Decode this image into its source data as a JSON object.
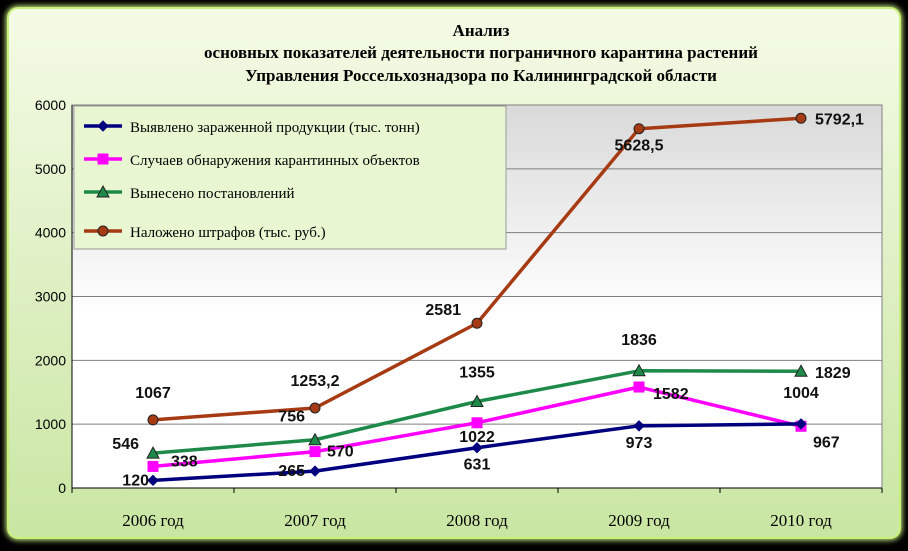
{
  "chart_data": {
    "type": "line",
    "title_lines": [
      "Анализ",
      "основных показателей деятельности пограничного карантина растений",
      "Управления Россельхознадзора по Калининградской области"
    ],
    "categories": [
      "2006 год",
      "2007 год",
      "2008 год",
      "2009 год",
      "2010 год"
    ],
    "ylim": [
      0,
      6000
    ],
    "yticks": [
      "0",
      "1000",
      "2000",
      "3000",
      "4000",
      "5000",
      "6000"
    ],
    "grid": true,
    "legend_position": "top-left",
    "series": [
      {
        "name": "Выявлено зараженной продукции (тыс. тонн)",
        "values": [
          120,
          265,
          631,
          973,
          1004
        ],
        "labels": [
          "120",
          "265",
          "631",
          "973",
          "1004"
        ],
        "color": "#00007f",
        "marker": "diamond"
      },
      {
        "name": "Случаев обнаружения карантинных объектов",
        "values": [
          338,
          570,
          1022,
          1582,
          967
        ],
        "labels": [
          "338",
          "570",
          "1022",
          "1582",
          "967"
        ],
        "color": "#ff00ff",
        "marker": "square"
      },
      {
        "name": "Вынесено постановлений",
        "values": [
          546,
          756,
          1355,
          1836,
          1829
        ],
        "labels": [
          "546",
          "756",
          "1355",
          "1836",
          "1829"
        ],
        "color": "#1e8a4a",
        "marker": "triangle"
      },
      {
        "name": "Наложено штрафов (тыс. руб.)",
        "values": [
          1067,
          1253.2,
          2581,
          5628.5,
          5792.1
        ],
        "labels": [
          "1067",
          "1253,2",
          "2581",
          "5628,5",
          "5792,1"
        ],
        "color": "#a63a12",
        "marker": "circle"
      }
    ]
  }
}
